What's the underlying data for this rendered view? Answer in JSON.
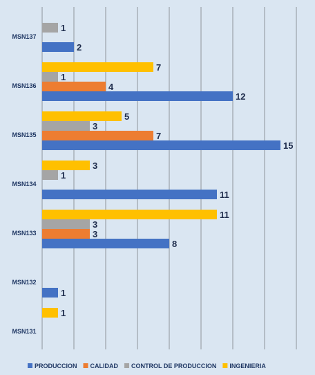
{
  "chart_data": {
    "type": "bar",
    "orientation": "horizontal",
    "categories": [
      "MSN137",
      "MSN136",
      "MSN135",
      "MSN134",
      "MSN133",
      "MSN132",
      "MSN131"
    ],
    "series": [
      {
        "name": "PRODUCCION",
        "color": "#4472c4",
        "values": [
          2,
          12,
          15,
          11,
          8,
          1,
          null
        ]
      },
      {
        "name": "CALIDAD",
        "color": "#ed7d31",
        "values": [
          null,
          4,
          7,
          null,
          3,
          null,
          null
        ]
      },
      {
        "name": "CONTROL DE PRODUCCION",
        "color": "#a5a5a5",
        "values": [
          1,
          1,
          3,
          1,
          3,
          null,
          null
        ]
      },
      {
        "name": "INGENIERIA",
        "color": "#ffc000",
        "values": [
          null,
          7,
          5,
          3,
          11,
          null,
          1
        ]
      }
    ],
    "xlim": [
      0,
      16
    ],
    "grid": true,
    "legend_position": "bottom"
  }
}
